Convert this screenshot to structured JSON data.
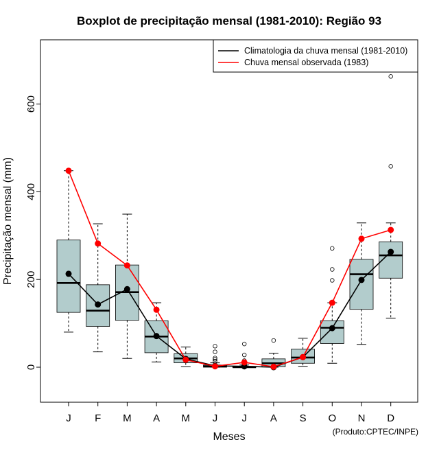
{
  "chart_data": {
    "type": "boxplot",
    "title": "Boxplot de precipitação mensal (1981-2010): Região 93",
    "xlabel": "Meses",
    "ylabel": "Precipitação mensal (mm)",
    "ylim": [
      -80,
      730
    ],
    "yticks": [
      0,
      200,
      400,
      600
    ],
    "categories": [
      "J",
      "F",
      "M",
      "A",
      "M",
      "J",
      "J",
      "A",
      "S",
      "O",
      "N",
      "D"
    ],
    "boxes": [
      {
        "whisker_low": 80,
        "q1": 125,
        "median": 192,
        "q3": 290,
        "whisker_high": 448,
        "outliers": []
      },
      {
        "whisker_low": 35,
        "q1": 93,
        "median": 129,
        "q3": 188,
        "whisker_high": 327,
        "outliers": []
      },
      {
        "whisker_low": 20,
        "q1": 107,
        "median": 171,
        "q3": 233,
        "whisker_high": 349,
        "outliers": []
      },
      {
        "whisker_low": 12,
        "q1": 33,
        "median": 70,
        "q3": 106,
        "whisker_high": 147,
        "outliers": []
      },
      {
        "whisker_low": 1,
        "q1": 10,
        "median": 20,
        "q3": 31,
        "whisker_high": 46,
        "outliers": []
      },
      {
        "whisker_low": 0,
        "q1": 0,
        "median": 2,
        "q3": 5,
        "whisker_high": 10,
        "outliers": [
          14,
          18,
          21,
          35,
          48
        ]
      },
      {
        "whisker_low": 0,
        "q1": 0,
        "median": 0,
        "q3": 2,
        "whisker_high": 5,
        "outliers": [
          10,
          15,
          28,
          53
        ]
      },
      {
        "whisker_low": 0,
        "q1": 1,
        "median": 9,
        "q3": 19,
        "whisker_high": 32,
        "outliers": [
          61
        ]
      },
      {
        "whisker_low": 2,
        "q1": 9,
        "median": 22,
        "q3": 41,
        "whisker_high": 66,
        "outliers": []
      },
      {
        "whisker_low": 9,
        "q1": 54,
        "median": 90,
        "q3": 106,
        "whisker_high": 147,
        "outliers": [
          198,
          223,
          271
        ]
      },
      {
        "whisker_low": 52,
        "q1": 132,
        "median": 212,
        "q3": 246,
        "whisker_high": 329,
        "outliers": []
      },
      {
        "whisker_low": 112,
        "q1": 203,
        "median": 255,
        "q3": 286,
        "whisker_high": 329,
        "outliers": [
          458,
          663
        ]
      }
    ],
    "series": [
      {
        "name": "Climatologia da chuva mensal (1981-2010)",
        "color": "#000000",
        "values": [
          213,
          143,
          178,
          71,
          19,
          3,
          2,
          0,
          23,
          89,
          199,
          263
        ]
      },
      {
        "name": "Chuva mensal observada (1983)",
        "color": "#ff0000",
        "values": [
          448,
          282,
          232,
          131,
          17,
          2,
          11,
          1,
          23,
          147,
          293,
          313
        ]
      }
    ],
    "box_fill": "#b2cccc",
    "legend_position": "top-right",
    "credit": "(Produto:CPTEC/INPE)"
  }
}
